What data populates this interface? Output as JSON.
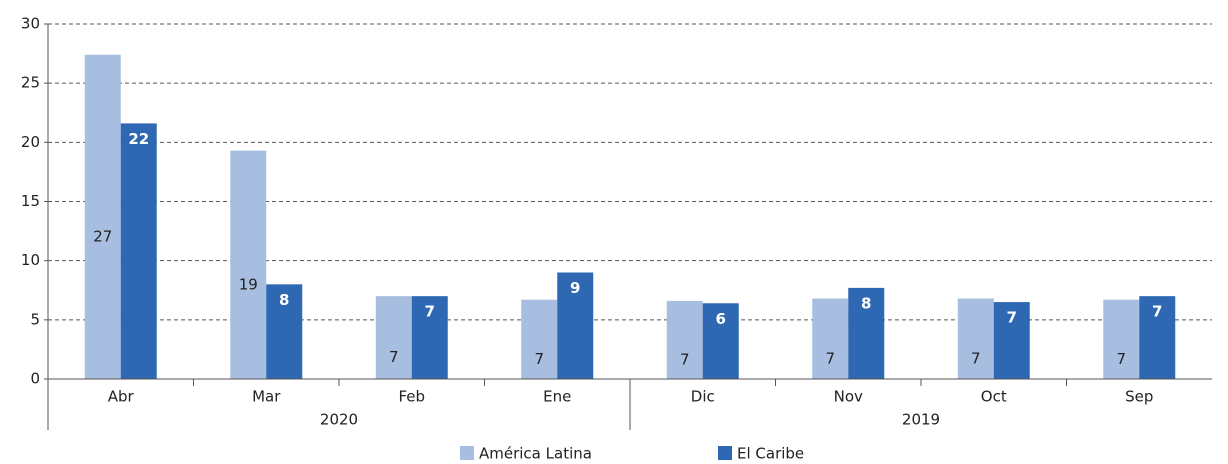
{
  "chart_data": {
    "type": "bar",
    "categories": [
      "Abr",
      "Mar",
      "Feb",
      "Ene",
      "Dic",
      "Nov",
      "Oct",
      "Sep"
    ],
    "x_groups": [
      {
        "label": "2020",
        "span": 4
      },
      {
        "label": "2019",
        "span": 4
      }
    ],
    "series": [
      {
        "name": "América Latina",
        "color": "#a7bee1",
        "values": [
          27.4,
          19.3,
          7.0,
          6.7,
          6.6,
          6.8,
          6.8,
          6.7
        ],
        "value_labels": [
          "27",
          "19",
          "7",
          "7",
          "7",
          "7",
          "7",
          "7"
        ]
      },
      {
        "name": "El Caribe",
        "color": "#2f68b2",
        "values": [
          21.6,
          8.0,
          7.0,
          9.0,
          6.4,
          7.7,
          6.5,
          7.0
        ],
        "value_labels": [
          "22",
          "8",
          "7",
          "9",
          "6",
          "8",
          "7",
          "7"
        ]
      }
    ],
    "ylim": [
      0,
      30
    ],
    "yticks": [
      0,
      5,
      10,
      15,
      20,
      25,
      30
    ],
    "grid": true,
    "legend": "bottom"
  }
}
